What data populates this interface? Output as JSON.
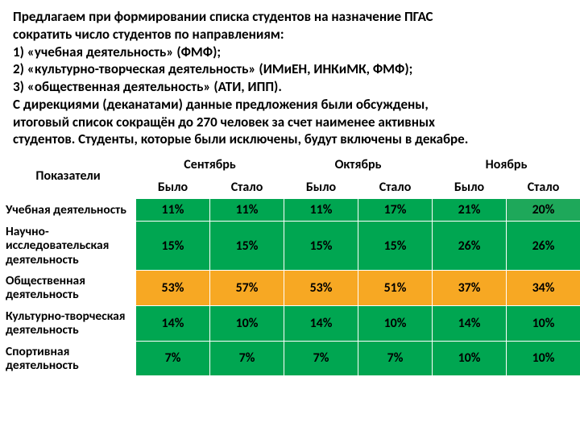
{
  "intro": {
    "line1": "Предлагаем при формировании списка студентов на назначение ПГАС",
    "line2": "сократить число студентов по направлениям:",
    "line3": "1) «учебная деятельность» (ФМФ);",
    "line4": "2) «культурно-творческая деятельность» (ИМиЕН, ИНКиМК, ФМФ);",
    "line5": "3) «общественная деятельность» (АТИ, ИПП).",
    "line6": "С дирекциями (деканатами) данные предложения были обсуждены,",
    "line7": "итоговый список сокращён до 270 человек за счет наименее активных",
    "line8": "студентов. Студенты, которые были исключены, будут включены в декабре."
  },
  "table": {
    "corner": "Показатели",
    "months": [
      "Сентябрь",
      "Октябрь",
      "Ноябрь"
    ],
    "sub": [
      "Было",
      "Стало",
      "Было",
      "Стало",
      "Было",
      "Стало"
    ],
    "rows": [
      {
        "label": "Учебная деятельность",
        "cells": [
          "11%",
          "11%",
          "11%",
          "17%",
          "21%",
          "20%"
        ],
        "colors": [
          "green",
          "green",
          "green",
          "green",
          "green",
          "green2"
        ]
      },
      {
        "label": "Научно-исследовательская деятельность",
        "cells": [
          "15%",
          "15%",
          "15%",
          "15%",
          "26%",
          "26%"
        ],
        "colors": [
          "green",
          "green",
          "green",
          "green",
          "green",
          "green"
        ]
      },
      {
        "label": "Общественная деятельность",
        "cells": [
          "53%",
          "57%",
          "53%",
          "51%",
          "37%",
          "34%"
        ],
        "colors": [
          "orange",
          "orange",
          "orange",
          "orange",
          "orange",
          "orange"
        ]
      },
      {
        "label": "Культурно-творческая деятельность",
        "cells": [
          "14%",
          "10%",
          "14%",
          "10%",
          "14%",
          "10%"
        ],
        "colors": [
          "green",
          "green",
          "green",
          "green",
          "green",
          "green"
        ]
      },
      {
        "label": "Спортивная деятельность",
        "cells": [
          "7%",
          "7%",
          "7%",
          "7%",
          "10%",
          "10%"
        ],
        "colors": [
          "green",
          "green",
          "green",
          "green",
          "green",
          "green"
        ]
      }
    ]
  },
  "colors": {
    "green": "#00a651",
    "green2": "#1ea85a",
    "orange": "#f7a823",
    "border": "#ffffff",
    "background": "#ffffff",
    "text": "#000000"
  },
  "typography": {
    "font_family": "Calibri, Arial, sans-serif",
    "intro_fontsize": 17,
    "table_fontsize": 16,
    "font_weight": "bold"
  }
}
